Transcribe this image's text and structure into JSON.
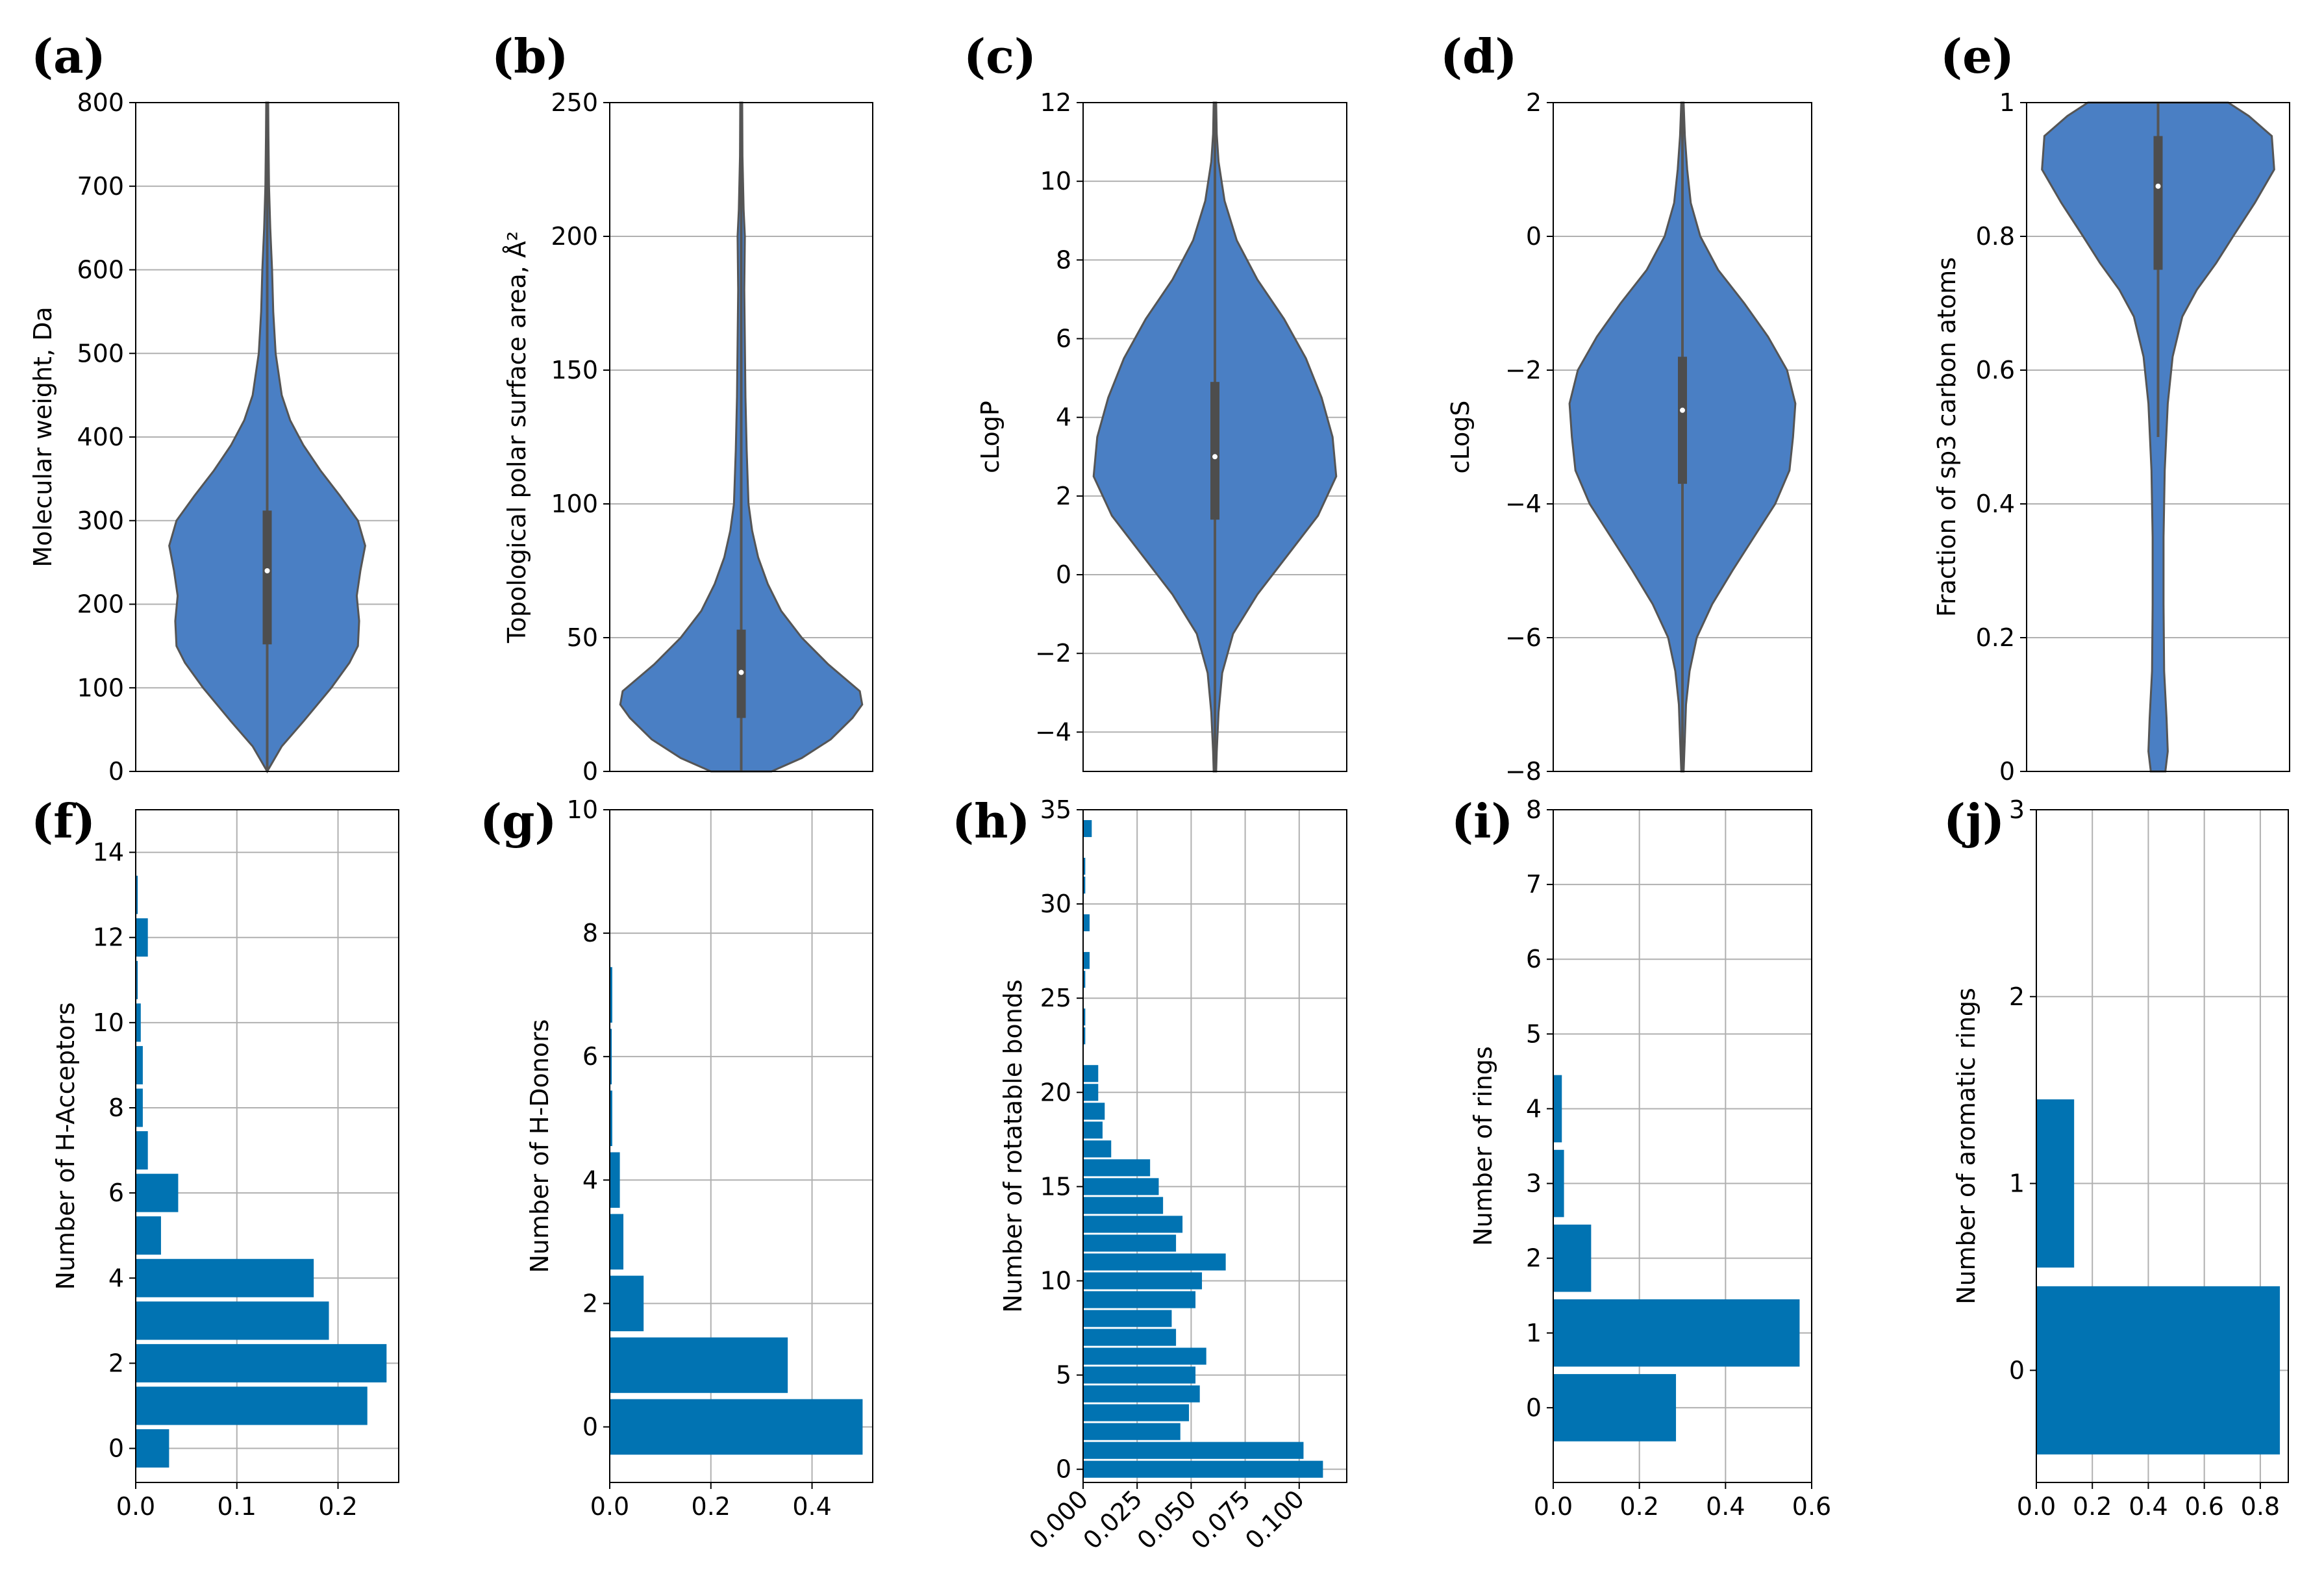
{
  "chart_data": [
    {
      "panel": "(a)",
      "type": "violin",
      "ylabel": "Molecular weight, Da",
      "ylim": [
        0,
        800
      ],
      "yticks": [
        0,
        100,
        200,
        300,
        400,
        500,
        600,
        700,
        800
      ],
      "color": "#4a7fc4",
      "box": [
        152,
        240,
        312
      ],
      "whisker": [
        0,
        800
      ],
      "density": [
        [
          0,
          0
        ],
        [
          30,
          0.12
        ],
        [
          60,
          0.3
        ],
        [
          100,
          0.53
        ],
        [
          130,
          0.68
        ],
        [
          150,
          0.75
        ],
        [
          180,
          0.76
        ],
        [
          210,
          0.74
        ],
        [
          240,
          0.77
        ],
        [
          270,
          0.81
        ],
        [
          300,
          0.75
        ],
        [
          330,
          0.6
        ],
        [
          360,
          0.44
        ],
        [
          390,
          0.3
        ],
        [
          420,
          0.19
        ],
        [
          450,
          0.12
        ],
        [
          500,
          0.07
        ],
        [
          550,
          0.05
        ],
        [
          600,
          0.04
        ],
        [
          650,
          0.025
        ],
        [
          700,
          0.015
        ],
        [
          760,
          0.01
        ],
        [
          800,
          0.008
        ]
      ]
    },
    {
      "panel": "(b)",
      "type": "violin",
      "ylabel": "Topological polar surface area, Å²",
      "ylim": [
        0,
        250
      ],
      "yticks": [
        0,
        50,
        100,
        150,
        200,
        250
      ],
      "color": "#4a7fc4",
      "box": [
        20,
        37,
        53
      ],
      "whisker": [
        0,
        250
      ],
      "density": [
        [
          0,
          0.25
        ],
        [
          5,
          0.5
        ],
        [
          12,
          0.74
        ],
        [
          20,
          0.92
        ],
        [
          25,
          1.0
        ],
        [
          30,
          0.98
        ],
        [
          40,
          0.72
        ],
        [
          50,
          0.5
        ],
        [
          60,
          0.33
        ],
        [
          70,
          0.22
        ],
        [
          80,
          0.14
        ],
        [
          90,
          0.09
        ],
        [
          100,
          0.06
        ],
        [
          120,
          0.045
        ],
        [
          140,
          0.035
        ],
        [
          160,
          0.03
        ],
        [
          180,
          0.025
        ],
        [
          200,
          0.03
        ],
        [
          210,
          0.02
        ],
        [
          230,
          0.01
        ],
        [
          250,
          0.008
        ]
      ]
    },
    {
      "panel": "(c)",
      "type": "violin",
      "ylabel": "cLogP",
      "ylim": [
        -5,
        12
      ],
      "yticks": [
        -4,
        -2,
        0,
        2,
        4,
        6,
        8,
        10,
        12
      ],
      "color": "#4a7fc4",
      "box": [
        1.4,
        3.0,
        4.9
      ],
      "whisker": [
        -5,
        12
      ],
      "density": [
        [
          -5,
          0.01
        ],
        [
          -4.5,
          0.015
        ],
        [
          -3.5,
          0.03
        ],
        [
          -2.5,
          0.06
        ],
        [
          -1.5,
          0.15
        ],
        [
          -0.5,
          0.35
        ],
        [
          0.5,
          0.6
        ],
        [
          1.5,
          0.85
        ],
        [
          2.5,
          1.0
        ],
        [
          3.5,
          0.97
        ],
        [
          4.5,
          0.88
        ],
        [
          5.5,
          0.75
        ],
        [
          6.5,
          0.57
        ],
        [
          7.5,
          0.35
        ],
        [
          8.5,
          0.18
        ],
        [
          9.5,
          0.08
        ],
        [
          10.5,
          0.03
        ],
        [
          11.2,
          0.015
        ],
        [
          12,
          0.01
        ]
      ]
    },
    {
      "panel": "(d)",
      "type": "violin",
      "ylabel": "cLogS",
      "ylim": [
        -8,
        2
      ],
      "yticks": [
        -8,
        -6,
        -4,
        -2,
        0,
        2
      ],
      "color": "#4a7fc4",
      "box": [
        -3.7,
        -2.6,
        -1.8
      ],
      "whisker": [
        -8,
        2
      ],
      "density": [
        [
          -8,
          0.01
        ],
        [
          -7.5,
          0.02
        ],
        [
          -7,
          0.03
        ],
        [
          -6.5,
          0.06
        ],
        [
          -6,
          0.12
        ],
        [
          -5.5,
          0.25
        ],
        [
          -5,
          0.42
        ],
        [
          -4.5,
          0.6
        ],
        [
          -4,
          0.78
        ],
        [
          -3.5,
          0.9
        ],
        [
          -3,
          0.93
        ],
        [
          -2.5,
          0.95
        ],
        [
          -2,
          0.88
        ],
        [
          -1.5,
          0.72
        ],
        [
          -1,
          0.52
        ],
        [
          -0.5,
          0.3
        ],
        [
          0,
          0.15
        ],
        [
          0.5,
          0.07
        ],
        [
          1,
          0.04
        ],
        [
          1.5,
          0.02
        ],
        [
          2,
          0.01
        ]
      ]
    },
    {
      "panel": "(e)",
      "type": "violin",
      "ylabel": "Fraction of sp3 carbon atoms",
      "ylim": [
        0,
        1
      ],
      "yticks": [
        0.0,
        0.2,
        0.4,
        0.6,
        0.8,
        1.0
      ],
      "color": "#4a7fc4",
      "box": [
        0.75,
        0.875,
        0.95
      ],
      "whisker": [
        0.5,
        1.0
      ],
      "density": [
        [
          0,
          0.06
        ],
        [
          0.03,
          0.08
        ],
        [
          0.08,
          0.07
        ],
        [
          0.15,
          0.05
        ],
        [
          0.25,
          0.045
        ],
        [
          0.35,
          0.045
        ],
        [
          0.45,
          0.055
        ],
        [
          0.55,
          0.08
        ],
        [
          0.62,
          0.12
        ],
        [
          0.68,
          0.2
        ],
        [
          0.72,
          0.32
        ],
        [
          0.76,
          0.48
        ],
        [
          0.8,
          0.62
        ],
        [
          0.85,
          0.8
        ],
        [
          0.9,
          0.96
        ],
        [
          0.95,
          0.94
        ],
        [
          0.98,
          0.75
        ],
        [
          1.0,
          0.58
        ]
      ]
    },
    {
      "panel": "(f)",
      "type": "bar",
      "ylabel": "Number of H-Acceptors",
      "ylim": [
        -0.8,
        15
      ],
      "xlim": [
        0,
        0.26
      ],
      "yticks": [
        0,
        2,
        4,
        6,
        8,
        10,
        12,
        14
      ],
      "xticks": [
        "0.0",
        "0.1",
        "0.2"
      ],
      "color": "#0173b2",
      "categories": [
        0,
        1,
        2,
        3,
        4,
        5,
        6,
        7,
        8,
        9,
        10,
        11,
        12,
        13
      ],
      "values": [
        0.033,
        0.229,
        0.248,
        0.191,
        0.176,
        0.025,
        0.042,
        0.012,
        0.007,
        0.007,
        0.005,
        0.002,
        0.012,
        0.002
      ]
    },
    {
      "panel": "(g)",
      "type": "bar",
      "ylabel": "Number of H-Donors",
      "ylim": [
        -0.9,
        10
      ],
      "xlim": [
        0,
        0.52
      ],
      "yticks": [
        0,
        2,
        4,
        6,
        8,
        10
      ],
      "xticks": [
        "0.0",
        "0.2",
        "0.4"
      ],
      "color": "#0173b2",
      "categories": [
        0,
        1,
        2,
        3,
        4,
        5,
        6,
        7
      ],
      "values": [
        0.5,
        0.352,
        0.067,
        0.027,
        0.02,
        0.005,
        0.004,
        0.005
      ]
    },
    {
      "panel": "(h)",
      "type": "bar",
      "ylabel": "Number of rotatable bonds",
      "ylim": [
        -0.7,
        35
      ],
      "xlim": [
        0,
        0.122
      ],
      "yticks": [
        0,
        5,
        10,
        15,
        20,
        25,
        30,
        35
      ],
      "xticks": [
        "0.000",
        "0.025",
        "0.050",
        "0.075",
        "0.100"
      ],
      "color": "#0173b2",
      "categories": [
        0,
        1,
        2,
        3,
        4,
        5,
        6,
        7,
        8,
        9,
        10,
        11,
        12,
        13,
        14,
        15,
        16,
        17,
        18,
        19,
        20,
        21,
        22,
        23,
        24,
        25,
        26,
        27,
        28,
        29,
        30,
        31,
        32,
        33,
        34
      ],
      "values": [
        0.111,
        0.102,
        0.045,
        0.049,
        0.054,
        0.052,
        0.057,
        0.043,
        0.041,
        0.052,
        0.055,
        0.066,
        0.043,
        0.046,
        0.037,
        0.035,
        0.031,
        0.013,
        0.009,
        0.01,
        0.007,
        0.007,
        0.0,
        0.001,
        0.001,
        0.0,
        0.001,
        0.003,
        0.0,
        0.003,
        0.0,
        0.001,
        0.001,
        0.0,
        0.004
      ]
    },
    {
      "panel": "(i)",
      "type": "bar",
      "ylabel": "Number of rings",
      "ylim": [
        -1,
        8
      ],
      "xlim": [
        0,
        0.6
      ],
      "yticks": [
        0,
        1,
        2,
        3,
        4,
        5,
        6,
        7,
        8
      ],
      "xticks": [
        "0.0",
        "0.2",
        "0.4",
        "0.6"
      ],
      "color": "#0173b2",
      "categories": [
        0,
        1,
        2,
        3,
        4
      ],
      "values": [
        0.285,
        0.572,
        0.088,
        0.025,
        0.02
      ]
    },
    {
      "panel": "(j)",
      "type": "bar",
      "ylabel": "Number of aromatic rings",
      "ylim": [
        -0.6,
        3
      ],
      "xlim": [
        0,
        0.9
      ],
      "yticks": [
        0,
        1,
        2,
        3
      ],
      "xticks": [
        "0.0",
        "0.2",
        "0.4",
        "0.6",
        "0.8"
      ],
      "color": "#0173b2",
      "categories": [
        0,
        1
      ],
      "values": [
        0.87,
        0.135
      ]
    }
  ]
}
